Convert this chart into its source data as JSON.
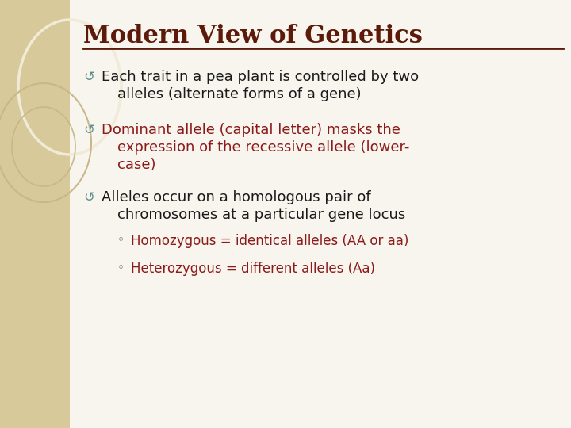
{
  "title": "Modern View of Genetics",
  "title_color": "#5C1A0A",
  "title_fontsize": 22,
  "background_color": "#F8F5EE",
  "left_panel_color": "#D8C99A",
  "body_color": "#1A1A1A",
  "sub_bullet_color": "#8B1A1A",
  "bullet_symbol_color": "#5A9090",
  "bullet1_text_line1": "Each trait in a pea plant is controlled by two",
  "bullet1_text_line2": "alleles (alternate forms of a gene)",
  "bullet2_text_line1": "Dominant allele (capital letter) masks the",
  "bullet2_text_line2": "expression of the recessive allele (lower-",
  "bullet2_text_line3": "case)",
  "bullet3_text_line1": "Alleles occur on a homologous pair of",
  "bullet3_text_line2": "chromosomes at a particular gene locus",
  "sub1_text": "Homozygous = identical alleles (AA or aa)",
  "sub2_text": "Heterozygous = different alleles (Aa)",
  "sub_text_color": "#8B1A1A",
  "bullet2_color": "#8B1A1A",
  "figwidth": 7.2,
  "figheight": 5.4,
  "dpi": 100
}
